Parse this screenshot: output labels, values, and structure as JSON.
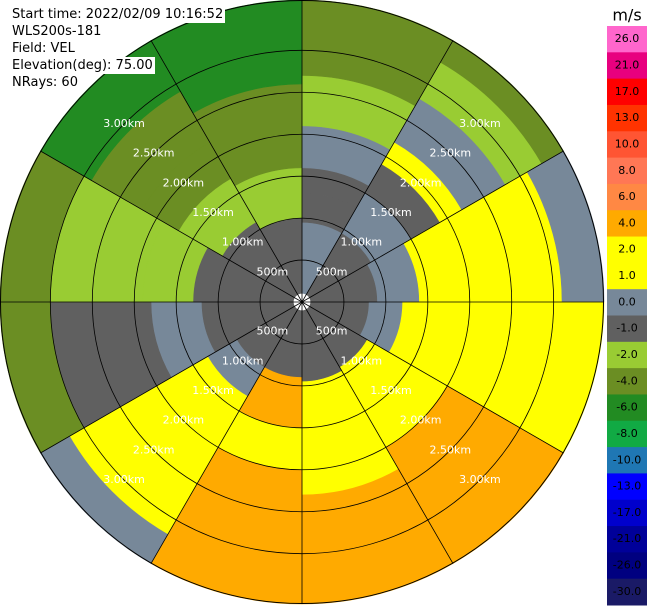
{
  "info": {
    "start_time": "Start time: 2022/02/09 10:16:52",
    "device": "WLS200s-181",
    "field": "Field: VEL",
    "elevation": "Elevation(deg): 75.00",
    "nrays": "NRays: 60"
  },
  "chart_data": {
    "type": "heatmap",
    "projection": "polar-ppi",
    "field": "VEL",
    "unit": "m/s",
    "range_rings": [
      {
        "km": 0.5,
        "label": "500m"
      },
      {
        "km": 1.0,
        "label": "1.00km"
      },
      {
        "km": 1.5,
        "label": "1.50km"
      },
      {
        "km": 2.0,
        "label": "2.00km"
      },
      {
        "km": 2.5,
        "label": "2.50km"
      },
      {
        "km": 3.0,
        "label": "3.00km"
      }
    ],
    "max_range_km": 3.6,
    "azimuth_lines_deg": [
      0,
      30,
      60,
      90,
      120,
      150,
      180,
      210,
      240,
      270,
      300,
      330
    ],
    "grid": true,
    "colorbar": {
      "ticks": [
        "26.0",
        "21.0",
        "17.0",
        "13.0",
        "10.0",
        "8.0",
        "6.0",
        "4.0",
        "2.0",
        "1.0",
        "0.0",
        "-1.0",
        "-2.0",
        "-4.0",
        "-6.0",
        "-8.0",
        "-10.0",
        "-13.0",
        "-17.0",
        "-21.0",
        "-26.0",
        "-30.0"
      ],
      "colors": [
        "#ff66cc",
        "#e8007f",
        "#ff0000",
        "#ff3300",
        "#ff5533",
        "#ff7755",
        "#ff8844",
        "#ffaa00",
        "#ffff00",
        "#ffff00",
        "#778899",
        "#606060",
        "#99cc33",
        "#6b8e23",
        "#228b22",
        "#11aa44",
        "#1f77b4",
        "#0000ff",
        "#0000cc",
        "#000099",
        "#000080",
        "#1a1a66"
      ]
    },
    "sectors": [
      {
        "az_from": 0,
        "az_to": 30,
        "bands": [
          [
            0.1,
            0.95,
            "0.0"
          ],
          [
            0.95,
            1.3,
            "-1.0"
          ],
          [
            1.3,
            1.6,
            "-1.0"
          ],
          [
            1.6,
            2.1,
            "0.0"
          ],
          [
            2.1,
            2.7,
            "-2.0"
          ],
          [
            2.7,
            3.6,
            "-4.0"
          ]
        ]
      },
      {
        "az_from": 30,
        "az_to": 60,
        "bands": [
          [
            0.1,
            0.95,
            "-1.0"
          ],
          [
            0.95,
            1.5,
            "0.0"
          ],
          [
            1.5,
            1.9,
            "-1.0"
          ],
          [
            1.9,
            2.2,
            "2.0"
          ],
          [
            2.2,
            2.8,
            "0.0"
          ],
          [
            2.8,
            3.3,
            "-2.0"
          ],
          [
            3.3,
            3.6,
            "-4.0"
          ]
        ]
      },
      {
        "az_from": 60,
        "az_to": 90,
        "bands": [
          [
            0.1,
            0.9,
            "-1.0"
          ],
          [
            0.9,
            1.4,
            "0.0"
          ],
          [
            1.4,
            2.4,
            "2.0"
          ],
          [
            2.4,
            3.1,
            "2.0"
          ],
          [
            3.1,
            3.6,
            "0.0"
          ]
        ]
      },
      {
        "az_from": 90,
        "az_to": 120,
        "bands": [
          [
            0.1,
            0.8,
            "-1.0"
          ],
          [
            0.8,
            1.2,
            "0.0"
          ],
          [
            1.2,
            1.6,
            "1.0"
          ],
          [
            1.6,
            3.6,
            "2.0"
          ]
        ]
      },
      {
        "az_from": 120,
        "az_to": 150,
        "bands": [
          [
            0.1,
            0.9,
            "-1.0"
          ],
          [
            0.9,
            1.4,
            "2.0"
          ],
          [
            1.4,
            2.0,
            "2.0"
          ],
          [
            2.0,
            3.6,
            "4.0"
          ]
        ]
      },
      {
        "az_from": 150,
        "az_to": 180,
        "bands": [
          [
            0.1,
            0.95,
            "-1.0"
          ],
          [
            0.95,
            1.6,
            "2.0"
          ],
          [
            1.6,
            2.3,
            "2.0"
          ],
          [
            2.3,
            3.6,
            "4.0"
          ]
        ]
      },
      {
        "az_from": 180,
        "az_to": 210,
        "bands": [
          [
            0.1,
            0.9,
            "-1.0"
          ],
          [
            0.9,
            1.5,
            "4.0"
          ],
          [
            1.5,
            2.0,
            "2.0"
          ],
          [
            2.0,
            3.6,
            "4.0"
          ]
        ]
      },
      {
        "az_from": 210,
        "az_to": 240,
        "bands": [
          [
            0.1,
            0.9,
            "-1.0"
          ],
          [
            0.9,
            1.3,
            "0.0"
          ],
          [
            1.3,
            1.8,
            "2.0"
          ],
          [
            1.8,
            2.6,
            "2.0"
          ],
          [
            2.6,
            3.2,
            "2.0"
          ],
          [
            3.2,
            3.6,
            "0.0"
          ]
        ]
      },
      {
        "az_from": 240,
        "az_to": 270,
        "bands": [
          [
            0.1,
            1.2,
            "-1.0"
          ],
          [
            1.2,
            1.8,
            "0.0"
          ],
          [
            1.8,
            2.5,
            "-1.0"
          ],
          [
            2.5,
            3.0,
            "-1.0"
          ],
          [
            3.0,
            3.6,
            "-4.0"
          ]
        ]
      },
      {
        "az_from": 270,
        "az_to": 300,
        "bands": [
          [
            0.1,
            1.3,
            "-1.0"
          ],
          [
            1.3,
            1.9,
            "-2.0"
          ],
          [
            1.9,
            3.0,
            "-2.0"
          ],
          [
            3.0,
            3.6,
            "-4.0"
          ]
        ]
      },
      {
        "az_from": 300,
        "az_to": 330,
        "bands": [
          [
            0.1,
            1.1,
            "-1.0"
          ],
          [
            1.1,
            1.7,
            "-2.0"
          ],
          [
            1.7,
            2.2,
            "-4.0"
          ],
          [
            2.2,
            2.9,
            "-4.0"
          ],
          [
            2.9,
            3.6,
            "-6.0"
          ]
        ]
      },
      {
        "az_from": 330,
        "az_to": 360,
        "bands": [
          [
            0.1,
            1.0,
            "-1.0"
          ],
          [
            1.0,
            1.6,
            "-2.0"
          ],
          [
            1.6,
            2.0,
            "-4.0"
          ],
          [
            2.0,
            2.6,
            "-4.0"
          ],
          [
            2.6,
            3.6,
            "-6.0"
          ]
        ]
      }
    ]
  }
}
